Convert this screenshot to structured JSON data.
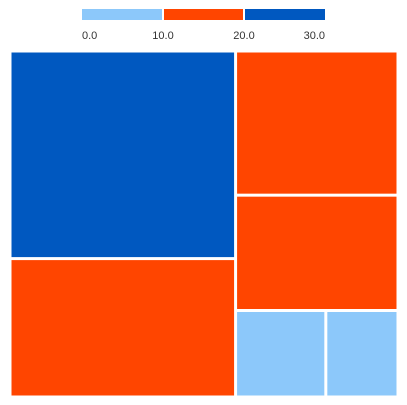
{
  "chart_data": {
    "type": "treemap",
    "title": "",
    "legend": {
      "placement": "top",
      "bins": [
        {
          "from": 0,
          "to": 10,
          "color": "#8cc8fa"
        },
        {
          "from": 10,
          "to": 20,
          "color": "#ff4500"
        },
        {
          "from": 20,
          "to": 30,
          "color": "#0058c0"
        }
      ],
      "tick_labels": [
        "0.0",
        "10.0",
        "20.0",
        "30.0"
      ]
    },
    "nodes": [
      {
        "value": 30,
        "color": "#0058c0"
      },
      {
        "value": 20,
        "color": "#ff4500"
      },
      {
        "value": 15,
        "color": "#ff4500"
      },
      {
        "value": 12,
        "color": "#ff4500"
      },
      {
        "value": 5,
        "color": "#8cc8fa"
      },
      {
        "value": 4,
        "color": "#8cc8fa"
      }
    ]
  }
}
